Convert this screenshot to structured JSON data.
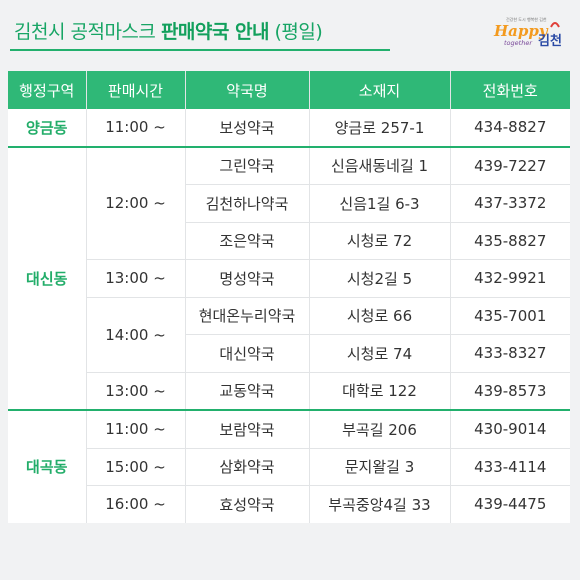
{
  "title": {
    "part1": "김천시 공적마스크",
    "part2": "판매약국 안내",
    "part3": "(평일)"
  },
  "logo": {
    "small_text": "건강한 도시 행복한 김천",
    "happy": "Happy",
    "together": "together",
    "gimcheon": "김천"
  },
  "table": {
    "headers": [
      "행정구역",
      "판매시간",
      "약국명",
      "소재지",
      "전화번호"
    ],
    "districts": [
      {
        "name": "양금동",
        "slots": [
          {
            "time": "11:00 ~",
            "pharmacies": [
              {
                "name": "보성약국",
                "address": "양금로 257-1",
                "phone": "434-8827"
              }
            ]
          }
        ]
      },
      {
        "name": "대신동",
        "slots": [
          {
            "time": "12:00 ~",
            "pharmacies": [
              {
                "name": "그린약국",
                "address": "신음새동네길 1",
                "phone": "439-7227"
              },
              {
                "name": "김천하나약국",
                "address": "신음1길 6-3",
                "phone": "437-3372"
              },
              {
                "name": "조은약국",
                "address": "시청로 72",
                "phone": "435-8827"
              }
            ]
          },
          {
            "time": "13:00 ~",
            "pharmacies": [
              {
                "name": "명성약국",
                "address": "시청2길 5",
                "phone": "432-9921"
              }
            ]
          },
          {
            "time": "14:00 ~",
            "pharmacies": [
              {
                "name": "현대온누리약국",
                "address": "시청로 66",
                "phone": "435-7001"
              },
              {
                "name": "대신약국",
                "address": "시청로 74",
                "phone": "433-8327"
              }
            ]
          },
          {
            "time": "13:00 ~",
            "pharmacies": [
              {
                "name": "교동약국",
                "address": "대학로 122",
                "phone": "439-8573"
              }
            ]
          }
        ]
      },
      {
        "name": "대곡동",
        "slots": [
          {
            "time": "11:00 ~",
            "pharmacies": [
              {
                "name": "보람약국",
                "address": "부곡길 206",
                "phone": "430-9014"
              }
            ]
          },
          {
            "time": "15:00 ~",
            "pharmacies": [
              {
                "name": "삼화약국",
                "address": "문지왈길 3",
                "phone": "433-4114"
              }
            ]
          },
          {
            "time": "16:00 ~",
            "pharmacies": [
              {
                "name": "효성약국",
                "address": "부곡중앙4길 33",
                "phone": "439-4475"
              }
            ]
          }
        ]
      }
    ]
  }
}
